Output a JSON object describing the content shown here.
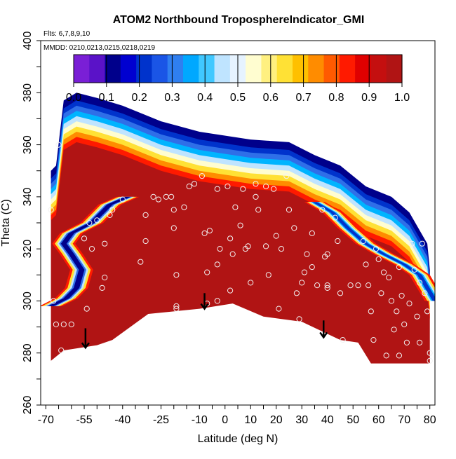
{
  "chart_data": {
    "type": "heatmap",
    "title": "ATOM2 Northbound TroposphereIndicator_GMI",
    "flights_note": "Flts: 6,7,8,9,10",
    "dates_note": "MMDD: 0210,0213,0215,0218,0219",
    "xlabel": "Latitude (deg N)",
    "ylabel": "Theta (C)",
    "xlim": [
      -72,
      82
    ],
    "ylim": [
      260,
      400
    ],
    "x_ticks": [
      -70,
      -55,
      -40,
      -25,
      -10,
      0,
      10,
      20,
      30,
      40,
      50,
      60,
      70,
      80
    ],
    "y_ticks": [
      260,
      280,
      300,
      320,
      340,
      360,
      380,
      400
    ],
    "colorbar": {
      "min": 0.0,
      "max": 1.0,
      "tick_values": [
        0.0,
        0.1,
        0.2,
        0.3,
        0.4,
        0.5,
        0.6,
        0.7,
        0.8,
        0.9,
        1.0
      ],
      "tick_labels": [
        "0.0",
        "0.1",
        "0.2",
        "0.3",
        "0.4",
        "0.5",
        "0.6",
        "0.7",
        "0.8",
        "0.9",
        "1.0"
      ],
      "colors": [
        "#7a1fd6",
        "#00008b",
        "#0033cc",
        "#2f6fe8",
        "#00b4ff",
        "#bfe4ff",
        "#fffdd0",
        "#ffe135",
        "#ff8c00",
        "#ff1a00",
        "#b01414"
      ]
    },
    "field": {
      "troposphere_value": 1.0,
      "bottom_boundary": [
        [
          -68,
          277
        ],
        [
          -63,
          281
        ],
        [
          -50,
          283
        ],
        [
          -44,
          285
        ],
        [
          -30,
          295
        ],
        [
          -10,
          297
        ],
        [
          3,
          299
        ],
        [
          15,
          294
        ],
        [
          30,
          292
        ],
        [
          45,
          285
        ],
        [
          52,
          284
        ],
        [
          57,
          276
        ],
        [
          72,
          276
        ],
        [
          80,
          276
        ]
      ],
      "top_boundary": [
        [
          -68,
          334
        ],
        [
          -66,
          336
        ],
        [
          -63,
          361
        ],
        [
          -58,
          364
        ],
        [
          -50,
          362
        ],
        [
          -40,
          359
        ],
        [
          -25,
          353
        ],
        [
          -10,
          349
        ],
        [
          10,
          346
        ],
        [
          25,
          345
        ],
        [
          35,
          340
        ],
        [
          45,
          336
        ],
        [
          55,
          328
        ],
        [
          65,
          324
        ],
        [
          72,
          318
        ],
        [
          79,
          306
        ],
        [
          80,
          296
        ]
      ],
      "low_band_south": [
        [
          -68,
          298
        ],
        [
          -62,
          301
        ],
        [
          -58,
          305
        ],
        [
          -56,
          312
        ],
        [
          -60,
          318
        ],
        [
          -63,
          322
        ],
        [
          -60,
          326
        ],
        [
          -52,
          330
        ],
        [
          -45,
          337
        ],
        [
          -38,
          340
        ]
      ],
      "low_band_north": [
        [
          82,
          300
        ],
        [
          76,
          310
        ],
        [
          70,
          314
        ],
        [
          62,
          318
        ],
        [
          55,
          322
        ],
        [
          48,
          328
        ],
        [
          42,
          334
        ],
        [
          35,
          338
        ]
      ]
    },
    "observations": [
      [
        -65,
        360
      ],
      [
        -68,
        335
      ],
      [
        -67,
        300
      ],
      [
        -66,
        291
      ],
      [
        -63,
        291
      ],
      [
        -60,
        291
      ],
      [
        -64,
        281
      ],
      [
        -54,
        297
      ],
      [
        -55,
        324
      ],
      [
        -53,
        330
      ],
      [
        -50,
        331
      ],
      [
        -52,
        320
      ],
      [
        -47,
        322
      ],
      [
        -47,
        309
      ],
      [
        -48,
        305
      ],
      [
        -45,
        333
      ],
      [
        -44,
        335
      ],
      [
        -40,
        339
      ],
      [
        -33,
        315
      ],
      [
        -31,
        323
      ],
      [
        -31,
        333
      ],
      [
        -28,
        340
      ],
      [
        -26,
        339
      ],
      [
        -23,
        340
      ],
      [
        -21,
        340
      ],
      [
        -20,
        328
      ],
      [
        -20,
        335
      ],
      [
        -19,
        310
      ],
      [
        -19,
        298
      ],
      [
        -19,
        297
      ],
      [
        -16,
        336
      ],
      [
        -14,
        344
      ],
      [
        -12,
        345
      ],
      [
        -9,
        348
      ],
      [
        -8,
        326
      ],
      [
        -7,
        311
      ],
      [
        -7,
        299
      ],
      [
        -6,
        327
      ],
      [
        -3,
        343
      ],
      [
        -3,
        314
      ],
      [
        -3,
        300
      ],
      [
        -2,
        320
      ],
      [
        1,
        344
      ],
      [
        2,
        324
      ],
      [
        2,
        304
      ],
      [
        3,
        318
      ],
      [
        4,
        336
      ],
      [
        6,
        329
      ],
      [
        7,
        343
      ],
      [
        8,
        320
      ],
      [
        9,
        321
      ],
      [
        10,
        307
      ],
      [
        12,
        340
      ],
      [
        12,
        345
      ],
      [
        13,
        335
      ],
      [
        16,
        344
      ],
      [
        16,
        321
      ],
      [
        17,
        310
      ],
      [
        19,
        343
      ],
      [
        20,
        325
      ],
      [
        22,
        320
      ],
      [
        21,
        297
      ],
      [
        24,
        348
      ],
      [
        25,
        335
      ],
      [
        27,
        328
      ],
      [
        28,
        303
      ],
      [
        29,
        293
      ],
      [
        30,
        307
      ],
      [
        31,
        311
      ],
      [
        32,
        318
      ],
      [
        34,
        326
      ],
      [
        34,
        313
      ],
      [
        36,
        306
      ],
      [
        38,
        335
      ],
      [
        39,
        317
      ],
      [
        40,
        318
      ],
      [
        40,
        306
      ],
      [
        40,
        305
      ],
      [
        43,
        332
      ],
      [
        44,
        323
      ],
      [
        45,
        303
      ],
      [
        46,
        285
      ],
      [
        49,
        306
      ],
      [
        52,
        306
      ],
      [
        54,
        323
      ],
      [
        55,
        314
      ],
      [
        56,
        306
      ],
      [
        57,
        296
      ],
      [
        58,
        285
      ],
      [
        59,
        320
      ],
      [
        60,
        316
      ],
      [
        61,
        303
      ],
      [
        62,
        311
      ],
      [
        63,
        279
      ],
      [
        64,
        309
      ],
      [
        65,
        300
      ],
      [
        66,
        289
      ],
      [
        67,
        296
      ],
      [
        68,
        313
      ],
      [
        68,
        279
      ],
      [
        69,
        302
      ],
      [
        70,
        291
      ],
      [
        71,
        284
      ],
      [
        72,
        299
      ],
      [
        73,
        322
      ],
      [
        74,
        312
      ],
      [
        75,
        294
      ],
      [
        76,
        284
      ],
      [
        76,
        307
      ],
      [
        77,
        322
      ],
      [
        78,
        303
      ],
      [
        79,
        296
      ],
      [
        80,
        280
      ],
      [
        80,
        277
      ]
    ],
    "arrows": [
      {
        "x": -54.5,
        "y_start": 289.5,
        "y_end": 282
      },
      {
        "x": -8,
        "y_start": 303,
        "y_end": 297
      },
      {
        "x": 38.5,
        "y_start": 292.5,
        "y_end": 286
      }
    ]
  }
}
